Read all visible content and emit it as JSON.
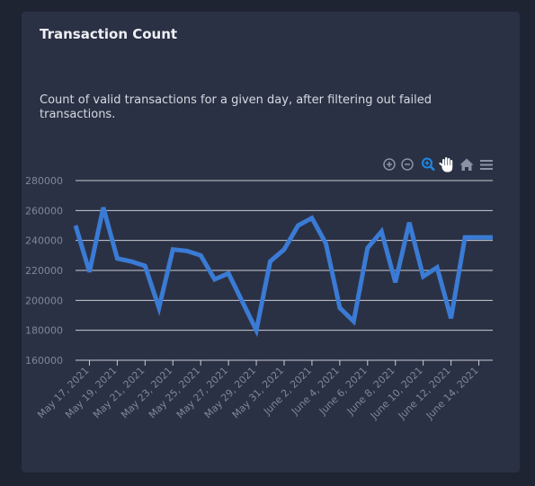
{
  "card": {
    "title": "Transaction Count",
    "description": "Count of valid transactions for a given day, after filtering out failed transactions."
  },
  "toolbar": {
    "icons": [
      "zoom-in-icon",
      "zoom-out-icon",
      "selection-zoom-icon",
      "pan-hand-icon",
      "home-reset-icon",
      "menu-icon"
    ],
    "active_color": "#1e88e5",
    "inactive_color": "#8a92a6"
  },
  "colors": {
    "series": "#3a7bd5",
    "grid": "#c9ccd6",
    "tick_text": "#7f8698"
  },
  "chart_data": {
    "type": "line",
    "x": [
      "May 16, 2021",
      "May 17, 2021",
      "May 18, 2021",
      "May 19, 2021",
      "May 20, 2021",
      "May 21, 2021",
      "May 22, 2021",
      "May 23, 2021",
      "May 24, 2021",
      "May 25, 2021",
      "May 26, 2021",
      "May 27, 2021",
      "May 28, 2021",
      "May 29, 2021",
      "May 30, 2021",
      "May 31, 2021",
      "June 1, 2021",
      "June 2, 2021",
      "June 3, 2021",
      "June 4, 2021",
      "June 5, 2021",
      "June 6, 2021",
      "June 7, 2021",
      "June 8, 2021",
      "June 9, 2021",
      "June 10, 2021",
      "June 11, 2021",
      "June 12, 2021",
      "June 13, 2021",
      "June 14, 2021",
      "June 15, 2021"
    ],
    "tick_labels": [
      "May 17, 2021",
      "May 19, 2021",
      "May 21, 2021",
      "May 23, 2021",
      "May 25, 2021",
      "May 27, 2021",
      "May 29, 2021",
      "May 31, 2021",
      "June 2, 2021",
      "June 4, 2021",
      "June 6, 2021",
      "June 8, 2021",
      "June 10, 2021",
      "June 12, 2021",
      "June 14, 2021"
    ],
    "series": [
      {
        "values": [
          250000,
          219000,
          262000,
          228000,
          226000,
          223000,
          195000,
          234000,
          233000,
          230000,
          214000,
          218000,
          199000,
          180000,
          226000,
          234000,
          250000,
          255000,
          238000,
          195000,
          186000,
          235000,
          246000,
          212000,
          252000,
          216000,
          222000,
          188000,
          242000,
          242000,
          242000
        ]
      }
    ],
    "ylim": [
      160000,
      280000
    ],
    "yticks": [
      160000,
      180000,
      200000,
      220000,
      240000,
      260000,
      280000
    ],
    "xlabel": "",
    "ylabel": "",
    "grid": true,
    "legend": "none"
  }
}
